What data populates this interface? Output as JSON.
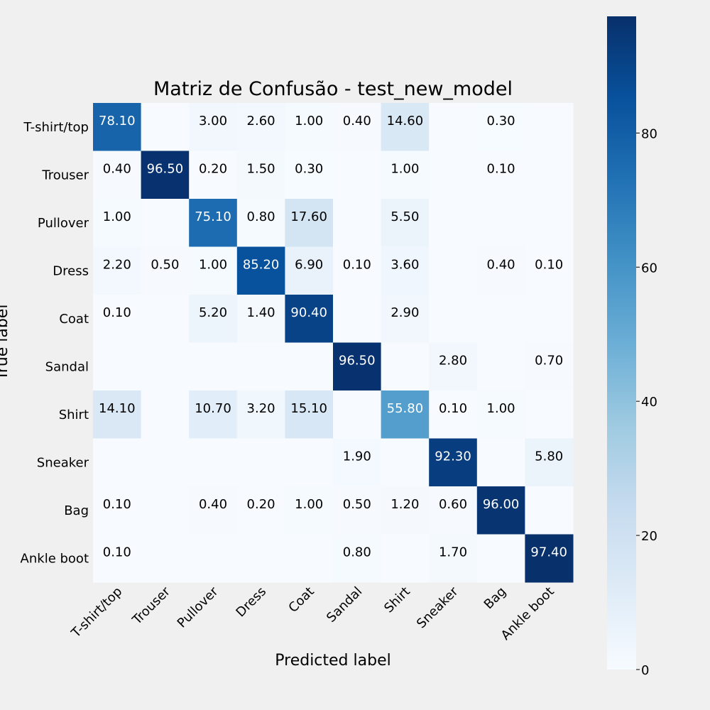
{
  "chart_data": {
    "type": "heatmap",
    "title": "Matriz de Confusão - test_new_model",
    "xlabel": "Predicted label",
    "ylabel": "True label",
    "x_categories": [
      "T-shirt/top",
      "Trouser",
      "Pullover",
      "Dress",
      "Coat",
      "Sandal",
      "Shirt",
      "Sneaker",
      "Bag",
      "Ankle boot"
    ],
    "y_categories": [
      "T-shirt/top",
      "Trouser",
      "Pullover",
      "Dress",
      "Coat",
      "Sandal",
      "Shirt",
      "Sneaker",
      "Bag",
      "Ankle boot"
    ],
    "values": [
      [
        78.1,
        0,
        3.0,
        2.6,
        1.0,
        0.4,
        14.6,
        0,
        0.3,
        0
      ],
      [
        0.4,
        96.5,
        0.2,
        1.5,
        0.3,
        0,
        1.0,
        0,
        0.1,
        0
      ],
      [
        1.0,
        0,
        75.1,
        0.8,
        17.6,
        0,
        5.5,
        0,
        0,
        0
      ],
      [
        2.2,
        0.5,
        1.0,
        85.2,
        6.9,
        0.1,
        3.6,
        0,
        0.4,
        0.1
      ],
      [
        0.1,
        0,
        5.2,
        1.4,
        90.4,
        0,
        2.9,
        0,
        0,
        0
      ],
      [
        0,
        0,
        0,
        0,
        0,
        96.5,
        0,
        2.8,
        0,
        0.7
      ],
      [
        14.1,
        0,
        10.7,
        3.2,
        15.1,
        0,
        55.8,
        0.1,
        1.0,
        0
      ],
      [
        0,
        0,
        0,
        0,
        0,
        1.9,
        0,
        92.3,
        0,
        5.8
      ],
      [
        0.1,
        0,
        0.4,
        0.2,
        1.0,
        0.5,
        1.2,
        0.6,
        96.0,
        0
      ],
      [
        0.1,
        0,
        0,
        0,
        0,
        0.8,
        0,
        1.7,
        0,
        97.4
      ]
    ],
    "value_format": "2 decimals, zero cells blank",
    "colormap": "Blues",
    "vmin": 0,
    "vmax": 97.4,
    "colorbar_ticks": [
      0,
      20,
      40,
      60,
      80
    ],
    "grid": false
  }
}
